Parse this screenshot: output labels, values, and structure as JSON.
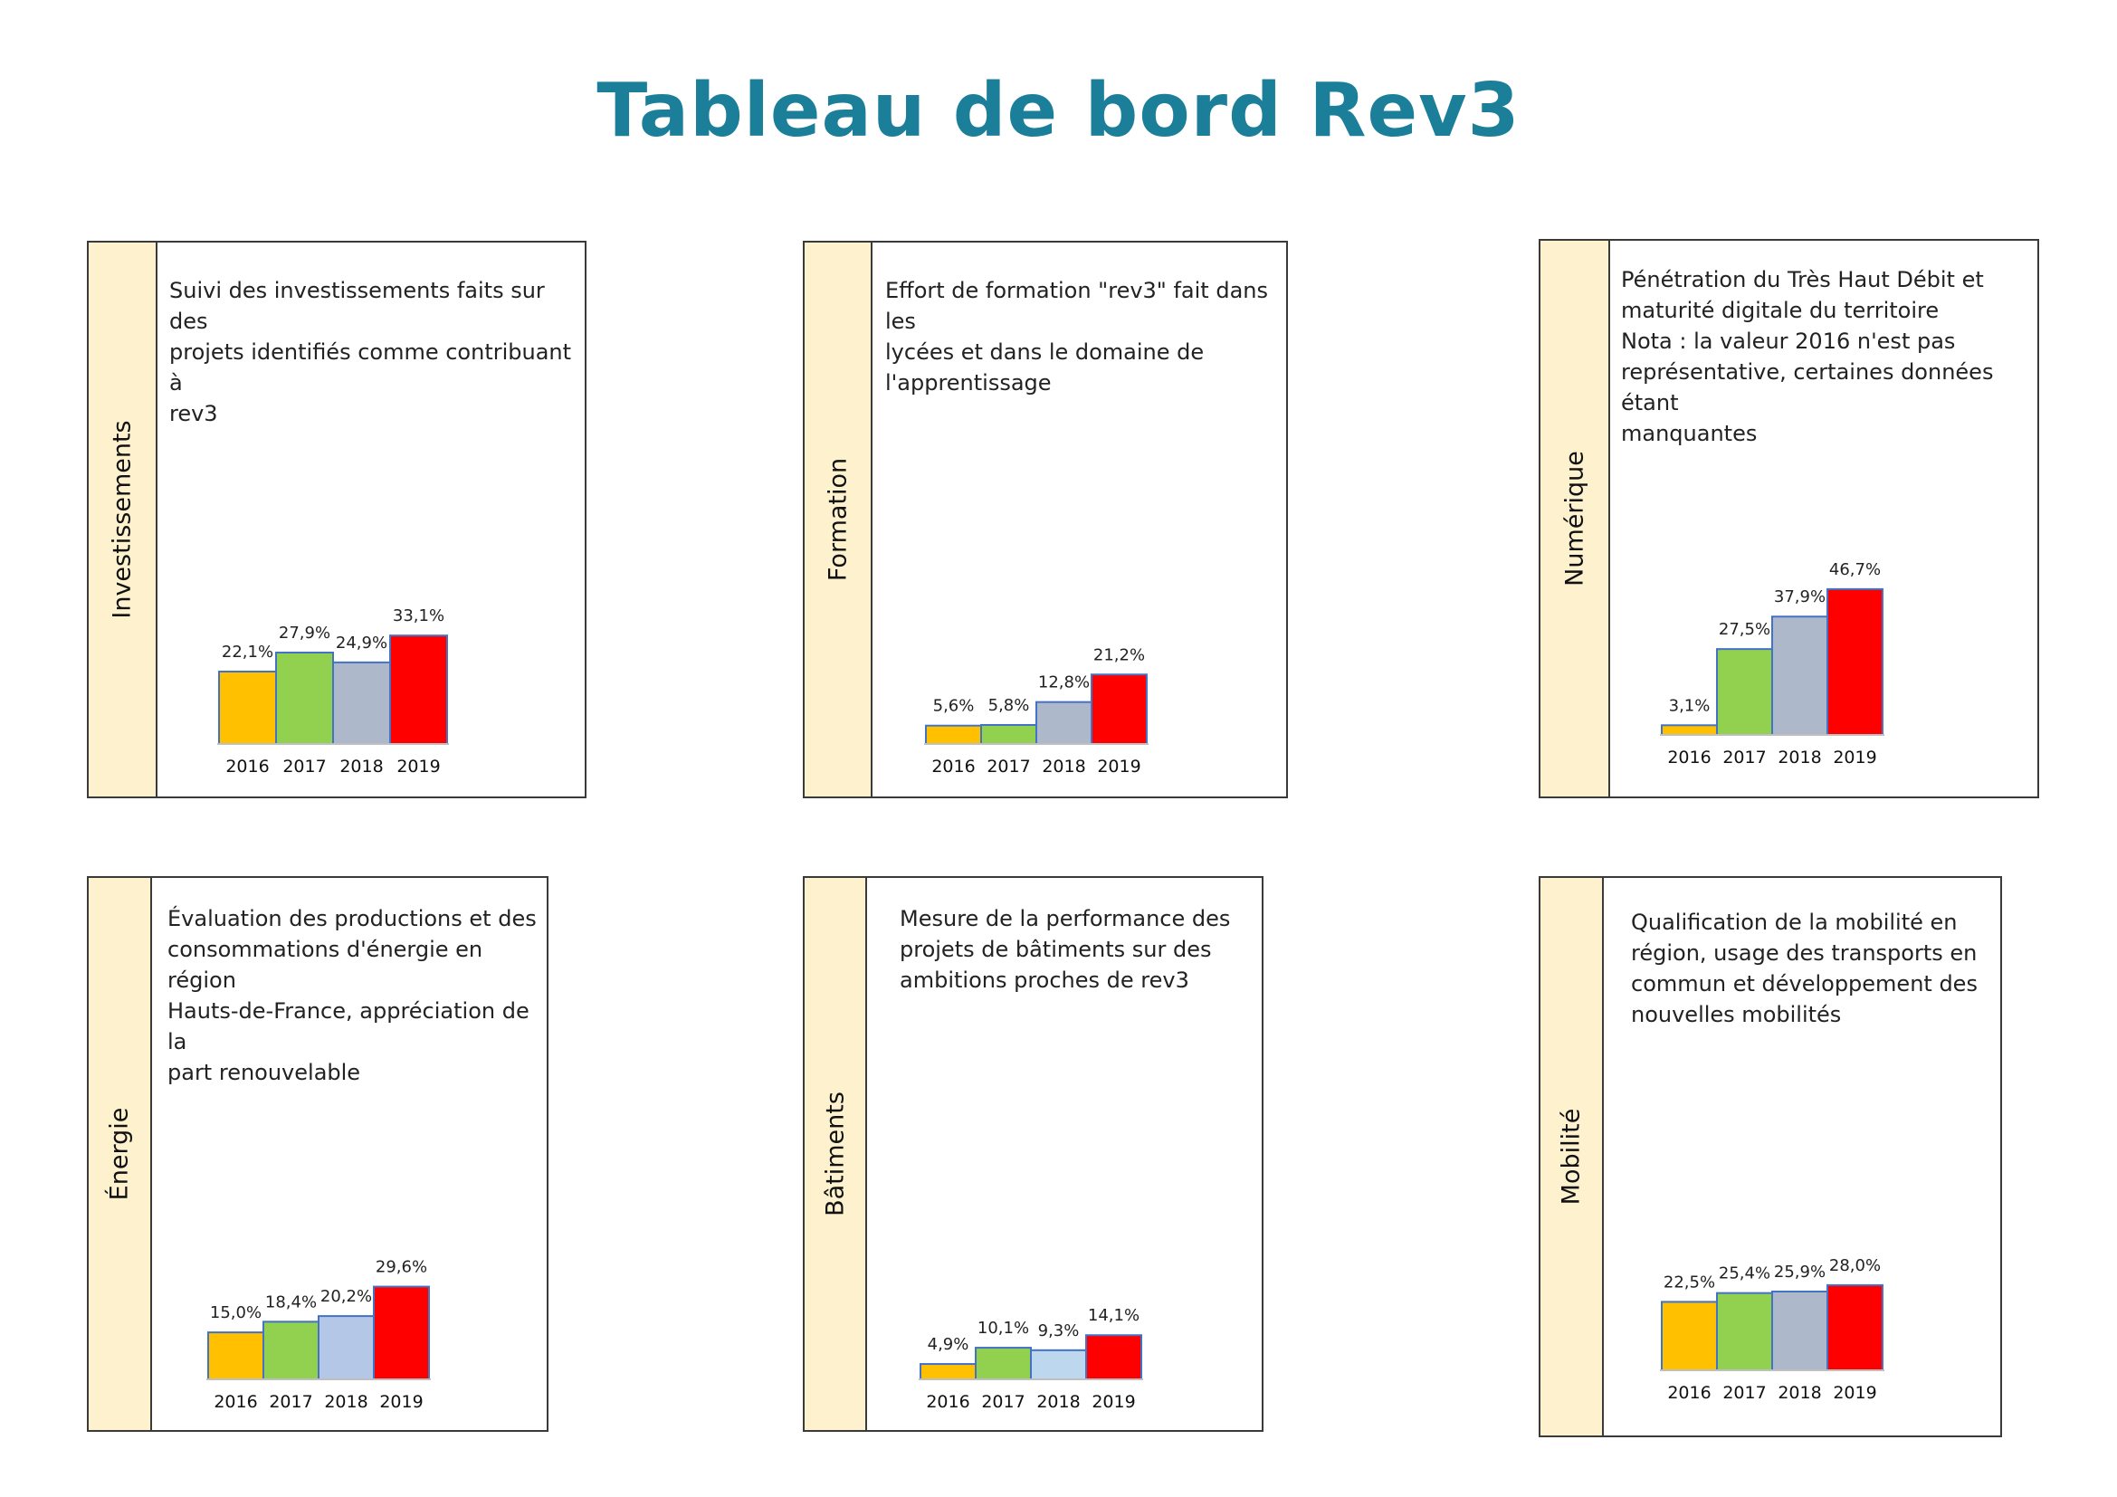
{
  "page": {
    "title": "Tableau de bord Rev3"
  },
  "colors": {
    "title": "#1c7f99",
    "side_band": "#fdf1ce",
    "bar_2016": "#ffc000",
    "bar_2017": "#92d050",
    "bar_2018_grey": "#adb9ca",
    "bar_2018_light_blue": "#b4c7e7",
    "bar_2018_pale_blue": "#bdd7ee",
    "bar_2019": "#ff0000",
    "bar_outline": "#4472c4"
  },
  "panels": [
    {
      "side_label": "Investissements",
      "description": [
        "Suivi des investissements faits sur des",
        "projets identifiés comme contribuant à",
        "rev3"
      ]
    },
    {
      "side_label": "Formation",
      "description": [
        "Effort de formation \"rev3\" fait dans les",
        "lycées et dans le domaine de",
        "l'apprentissage"
      ]
    },
    {
      "side_label": "Numérique",
      "description": [
        "Pénétration du Très Haut Débit et",
        "maturité digitale du territoire",
        "Nota : la valeur 2016 n'est pas",
        "représentative, certaines données étant",
        "manquantes"
      ]
    },
    {
      "side_label": "Énergie",
      "description": [
        "Évaluation des productions et des",
        "consommations d'énergie en région",
        "Hauts-de-France, appréciation de la",
        "part renouvelable"
      ]
    },
    {
      "side_label": "Bâtiments",
      "description": [
        "Mesure de la performance des",
        "projets de bâtiments sur des",
        "ambitions proches de rev3"
      ]
    },
    {
      "side_label": "Mobilité",
      "description": [
        "Qualification de la mobilité en",
        "région, usage des transports en",
        "commun et développement des",
        "nouvelles mobilités"
      ]
    }
  ],
  "chart_data": [
    {
      "type": "bar",
      "categories": [
        "2016",
        "2017",
        "2018",
        "2019"
      ],
      "values": [
        22.1,
        27.9,
        24.9,
        33.1
      ],
      "data_labels": [
        "22,1%",
        "27,9%",
        "24,9%",
        "33,1%"
      ],
      "bar_colors": [
        "#ffc000",
        "#92d050",
        "#adb9ca",
        "#ff0000"
      ],
      "ylim": [
        0,
        100
      ],
      "grid": false
    },
    {
      "type": "bar",
      "categories": [
        "2016",
        "2017",
        "2018",
        "2019"
      ],
      "values": [
        5.6,
        5.8,
        12.8,
        21.2
      ],
      "data_labels": [
        "5,6%",
        "5,8%",
        "12,8%",
        "21,2%"
      ],
      "bar_colors": [
        "#ffc000",
        "#92d050",
        "#adb9ca",
        "#ff0000"
      ],
      "ylim": [
        0,
        100
      ],
      "grid": false
    },
    {
      "type": "bar",
      "categories": [
        "2016",
        "2017",
        "2018",
        "2019"
      ],
      "values": [
        3.1,
        27.5,
        37.9,
        46.7
      ],
      "data_labels": [
        "3,1%",
        "27,5%",
        "37,9%",
        "46,7%"
      ],
      "bar_colors": [
        "#ffc000",
        "#92d050",
        "#adb9ca",
        "#ff0000"
      ],
      "ylim": [
        0,
        100
      ],
      "grid": false
    },
    {
      "type": "bar",
      "categories": [
        "2016",
        "2017",
        "2018",
        "2019"
      ],
      "values": [
        15.0,
        18.4,
        20.2,
        29.6
      ],
      "data_labels": [
        "15,0%",
        "18,4%",
        "20,2%",
        "29,6%"
      ],
      "bar_colors": [
        "#ffc000",
        "#92d050",
        "#b4c7e7",
        "#ff0000"
      ],
      "ylim": [
        0,
        100
      ],
      "grid": false
    },
    {
      "type": "bar",
      "categories": [
        "2016",
        "2017",
        "2018",
        "2019"
      ],
      "values": [
        4.9,
        10.1,
        9.3,
        14.1
      ],
      "data_labels": [
        "4,9%",
        "10,1%",
        "9,3%",
        "14,1%"
      ],
      "bar_colors": [
        "#ffc000",
        "#92d050",
        "#bdd7ee",
        "#ff0000"
      ],
      "ylim": [
        0,
        100
      ],
      "grid": false
    },
    {
      "type": "bar",
      "categories": [
        "2016",
        "2017",
        "2018",
        "2019"
      ],
      "values": [
        22.5,
        25.4,
        25.9,
        28.0
      ],
      "data_labels": [
        "22,5%",
        "25,4%",
        "25,9%",
        "28,0%"
      ],
      "bar_colors": [
        "#ffc000",
        "#92d050",
        "#adb9ca",
        "#ff0000"
      ],
      "ylim": [
        0,
        100
      ],
      "grid": false
    }
  ]
}
